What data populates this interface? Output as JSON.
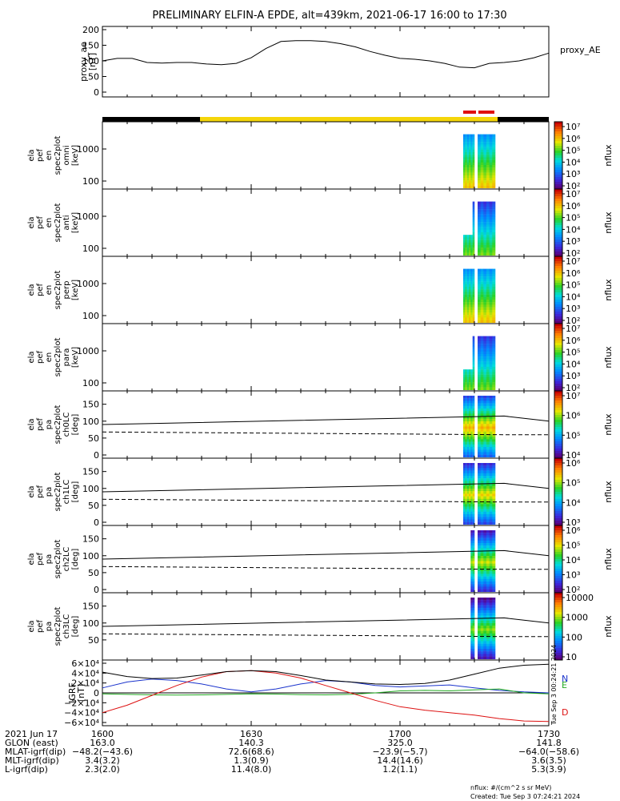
{
  "title": "PRELIMINARY ELFIN-A EPDE, alt=439km, 2021-06-17 16:00 to 17:30",
  "colors": {
    "orbit_bar_black": "#000000",
    "orbit_bar_yellow": "#f5d60a",
    "science_bar_red": "#e01010",
    "trace_N": "#1a33cc",
    "trace_E": "#22aa22",
    "trace_D": "#dd1111",
    "trace_total": "#000000"
  },
  "chart_data": [
    {
      "type": "line",
      "panel": "proxy_ae",
      "ylabel_lines": [
        "proxy_ae",
        "[nT]"
      ],
      "right_label": "proxy_AE",
      "yticks": [
        "200",
        "150",
        "100",
        "50",
        "0"
      ],
      "ylim": [
        0,
        200
      ],
      "x": [
        0,
        3,
        6,
        9,
        12,
        15,
        18,
        21,
        24,
        27,
        30,
        33,
        36,
        39,
        42,
        45,
        48,
        51,
        54,
        57,
        60,
        63,
        66,
        69,
        72,
        75,
        78,
        81,
        84,
        87,
        90
      ],
      "series": [
        {
          "values": [
            100,
            108,
            108,
            95,
            93,
            95,
            95,
            90,
            88,
            92,
            110,
            140,
            162,
            165,
            165,
            162,
            155,
            145,
            130,
            118,
            108,
            105,
            100,
            92,
            80,
            78,
            92,
            95,
            100,
            110,
            125
          ]
        }
      ]
    },
    {
      "type": "heatmap",
      "panel": "omni",
      "ylabel_lines": [
        "ela",
        "pef",
        "en",
        "spec2plot",
        "omni",
        "[keV]"
      ],
      "yticks": [
        "1000",
        "100"
      ],
      "colorbar": {
        "label": "nflux",
        "ticks": [
          "10⁷",
          "10⁶",
          "10⁵",
          "10⁴",
          "10³",
          "10²"
        ]
      }
    },
    {
      "type": "heatmap",
      "panel": "anti",
      "ylabel_lines": [
        "ela",
        "pef",
        "en",
        "spec2plot",
        "anti",
        "[keV]"
      ],
      "yticks": [
        "1000",
        "100"
      ],
      "colorbar": {
        "label": "nflux",
        "ticks": [
          "10⁷",
          "10⁶",
          "10⁵",
          "10⁴",
          "10³",
          "10²"
        ]
      }
    },
    {
      "type": "heatmap",
      "panel": "perp",
      "ylabel_lines": [
        "ela",
        "pef",
        "en",
        "spec2plot",
        "perp",
        "[keV]"
      ],
      "yticks": [
        "1000",
        "100"
      ],
      "colorbar": {
        "label": "nflux",
        "ticks": [
          "10⁷",
          "10⁶",
          "10⁵",
          "10⁴",
          "10³",
          "10²"
        ]
      }
    },
    {
      "type": "heatmap",
      "panel": "para",
      "ylabel_lines": [
        "ela",
        "pef",
        "en",
        "spec2plot",
        "para",
        "[keV]"
      ],
      "yticks": [
        "1000",
        "100"
      ],
      "colorbar": {
        "label": "nflux",
        "ticks": [
          "10⁷",
          "10⁶",
          "10⁵",
          "10⁴",
          "10³",
          "10²"
        ]
      }
    },
    {
      "type": "heatmap",
      "panel": "ch0LC",
      "ylabel_lines": [
        "ela",
        "pef",
        "pa",
        "spec2plot",
        "ch0LC",
        "[deg]"
      ],
      "yticks": [
        "150",
        "100",
        "50",
        "0"
      ],
      "ylim": [
        0,
        180
      ],
      "loss_cone": {
        "x": [
          0,
          81,
          90
        ],
        "solid": [
          90,
          115,
          100
        ],
        "dashed": [
          68,
          60,
          60
        ]
      },
      "colorbar": {
        "label": "nflux",
        "ticks": [
          "10⁷",
          "10⁶",
          "10⁵",
          "10⁴"
        ]
      }
    },
    {
      "type": "heatmap",
      "panel": "ch1LC",
      "ylabel_lines": [
        "ela",
        "pef",
        "pa",
        "spec2plot",
        "ch1LC",
        "[deg]"
      ],
      "yticks": [
        "150",
        "100",
        "50",
        "0"
      ],
      "ylim": [
        0,
        180
      ],
      "loss_cone": {
        "x": [
          0,
          81,
          90
        ],
        "solid": [
          90,
          115,
          100
        ],
        "dashed": [
          68,
          60,
          60
        ]
      },
      "colorbar": {
        "label": "nflux",
        "ticks": [
          "10⁶",
          "10⁵",
          "10⁴",
          "10³"
        ]
      }
    },
    {
      "type": "heatmap",
      "panel": "ch2LC",
      "ylabel_lines": [
        "ela",
        "pef",
        "pa",
        "spec2plot",
        "ch2LC",
        "[deg]"
      ],
      "yticks": [
        "150",
        "100",
        "50",
        "0"
      ],
      "ylim": [
        0,
        180
      ],
      "loss_cone": {
        "x": [
          0,
          81,
          90
        ],
        "solid": [
          90,
          115,
          100
        ],
        "dashed": [
          68,
          60,
          60
        ]
      },
      "colorbar": {
        "label": "nflux",
        "ticks": [
          "10⁶",
          "10⁵",
          "10⁴",
          "10³",
          "10²"
        ]
      }
    },
    {
      "type": "heatmap",
      "panel": "ch3LC",
      "ylabel_lines": [
        "ela",
        "pef",
        "pa",
        "spec2plot",
        "ch3LC",
        "[deg]"
      ],
      "yticks": [
        "150",
        "100",
        "50"
      ],
      "ylim": [
        0,
        180
      ],
      "loss_cone": {
        "x": [
          0,
          81,
          90
        ],
        "solid": [
          90,
          115,
          100
        ],
        "dashed": [
          68,
          60,
          60
        ]
      },
      "colorbar": {
        "label": "nflux",
        "ticks": [
          "10000",
          "1000",
          "100",
          "10"
        ]
      }
    },
    {
      "type": "line",
      "panel": "IGRF",
      "ylabel_lines": [
        "IGRF",
        "[nT]"
      ],
      "yticks": [
        "6×10⁴",
        "4×10⁴",
        "2×10⁴",
        "0",
        "−2×10⁴",
        "−4×10⁴",
        "−6×10⁴"
      ],
      "ylim": [
        -60000,
        60000
      ],
      "x": [
        0,
        5,
        10,
        15,
        20,
        25,
        30,
        35,
        40,
        45,
        50,
        55,
        60,
        65,
        70,
        75,
        80,
        85,
        90
      ],
      "series": [
        {
          "name": "N",
          "values": [
            10000,
            22000,
            28000,
            25000,
            18000,
            8000,
            2000,
            8000,
            18000,
            25000,
            22000,
            15000,
            12000,
            14000,
            16000,
            10000,
            5000,
            2000,
            0
          ]
        },
        {
          "name": "E",
          "values": [
            -2000,
            -3000,
            -4000,
            -4500,
            -4000,
            -3000,
            -2000,
            -2500,
            -3500,
            -4000,
            -3000,
            0,
            4000,
            5000,
            4000,
            6000,
            8000,
            0,
            -2000
          ]
        },
        {
          "name": "D",
          "values": [
            -40000,
            -25000,
            -5000,
            15000,
            32000,
            43000,
            45000,
            40000,
            30000,
            15000,
            0,
            -15000,
            -28000,
            -35000,
            -40000,
            -45000,
            -52000,
            -57000,
            -58000
          ]
        },
        {
          "values": [
            42000,
            33000,
            29000,
            30000,
            36000,
            43000,
            45000,
            43000,
            35000,
            26000,
            22000,
            18000,
            17000,
            19000,
            26000,
            38000,
            50000,
            56000,
            58000
          ]
        }
      ],
      "spine_note": "Tue Sep  3 00:24:21 2024"
    }
  ],
  "orbit_table": {
    "header": "2021 Jun 17",
    "ticks": [
      "1600",
      "1630",
      "1700",
      "1730"
    ],
    "rows": [
      {
        "label": "GLON (east)",
        "values": [
          "163.0",
          "140.3",
          "325.0",
          "141.8"
        ]
      },
      {
        "label": "MLAT-igrf(dip)",
        "values": [
          "−48.2(−43.6)",
          "72.6(68.6)",
          "−23.9(−5.7)",
          "−64.0(−58.6)"
        ]
      },
      {
        "label": "MLT-igrf(dip)",
        "values": [
          "3.4(3.2)",
          "1.3(0.9)",
          "14.4(14.6)",
          "3.6(3.5)"
        ]
      },
      {
        "label": "L-igrf(dip)",
        "values": [
          "2.3(2.0)",
          "11.4(8.0)",
          "1.2(1.1)",
          "5.3(3.9)"
        ]
      }
    ]
  },
  "footer": {
    "units": "nflux: #/(cm^2 s sr MeV)",
    "created": "Created: Tue Sep  3 07:24:21 2024"
  }
}
